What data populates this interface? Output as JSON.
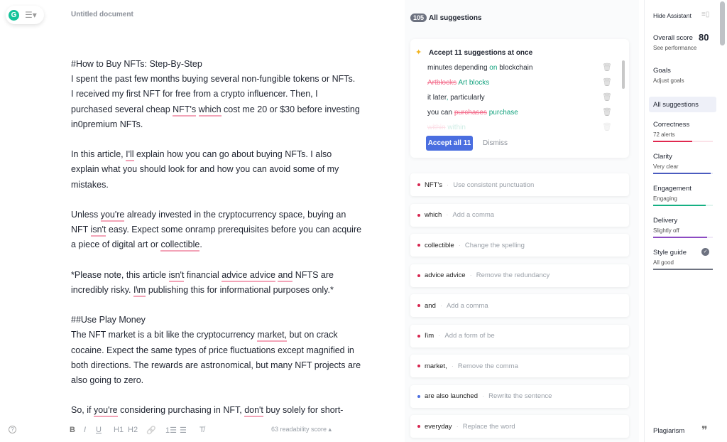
{
  "header": {
    "title": "Untitled document",
    "logo": "G"
  },
  "document": {
    "lines": [
      [
        {
          "t": "#How to Buy NFTs: Step-By-Step"
        }
      ],
      [
        {
          "t": "I spent the past few months buying several non-fungible tokens or NFTs."
        }
      ],
      [
        {
          "t": "I received my first NFT for free from a crypto influencer. Then, I"
        }
      ],
      [
        {
          "t": "purchased several cheap "
        },
        {
          "t": "NFT's",
          "u": true
        },
        {
          "t": " "
        },
        {
          "t": "which",
          "u": true
        },
        {
          "t": " cost me 20 or $30 before investing"
        }
      ],
      [
        {
          "t": "in0premium NFTs."
        }
      ],
      [],
      [
        {
          "t": "In this article, "
        },
        {
          "t": "I'll",
          "u": true
        },
        {
          "t": " explain how you can go about buying NFTs. I also"
        }
      ],
      [
        {
          "t": "explain what you should look for and how you can avoid some of my"
        }
      ],
      [
        {
          "t": "mistakes."
        }
      ],
      [],
      [
        {
          "t": "Unless "
        },
        {
          "t": "you're",
          "u": true
        },
        {
          "t": " already invested in the cryptocurrency space, buying an"
        }
      ],
      [
        {
          "t": "NFT "
        },
        {
          "t": "isn't",
          "u": true
        },
        {
          "t": " easy. Expect some onramp prerequisites before you can acquire"
        }
      ],
      [
        {
          "t": "a piece of digital art or "
        },
        {
          "t": "collectible",
          "u": true
        },
        {
          "t": "."
        }
      ],
      [],
      [
        {
          "t": "*Please note, this article "
        },
        {
          "t": "isn't",
          "u": true
        },
        {
          "t": " financial "
        },
        {
          "t": "advice advice",
          "u": true
        },
        {
          "t": " "
        },
        {
          "t": "and",
          "u": true
        },
        {
          "t": " NFTS are"
        }
      ],
      [
        {
          "t": "incredibly risky. "
        },
        {
          "t": "I\\m",
          "u": true
        },
        {
          "t": " publishing this for informational purposes only.*"
        }
      ],
      [],
      [
        {
          "t": "##Use Play Money"
        }
      ],
      [
        {
          "t": "The NFT market is a bit like the cryptocurrency "
        },
        {
          "t": "market,",
          "u": true
        },
        {
          "t": " but on crack"
        }
      ],
      [
        {
          "t": "cocaine. Expect the same types of price fluctuations except magnified in"
        }
      ],
      [
        {
          "t": "both directions. The rewards are astronomical, but many NFT projects are"
        }
      ],
      [
        {
          "t": "also going to zero."
        }
      ],
      [],
      [
        {
          "t": "So, if "
        },
        {
          "t": "you're",
          "u": true
        },
        {
          "t": " considering purchasing in NFT, "
        },
        {
          "t": "don't",
          "u": true
        },
        {
          "t": " buy solely for short-"
        }
      ]
    ]
  },
  "toolbar": {
    "help": "?",
    "bold": "B",
    "italic": "I",
    "underline": "U",
    "h1": "H1",
    "h2": "H2",
    "link": "🔗",
    "ordered": "1☰",
    "bullet": "☰",
    "clear": "T̸",
    "readability": "63 readability score ▴"
  },
  "suggestions": {
    "count": "105",
    "title": "All suggestions",
    "bulk": {
      "title": "Accept 11 suggestions at once",
      "items": [
        [
          {
            "t": "minutes depending "
          },
          {
            "t": "on",
            "k": "ins"
          },
          {
            "t": " blockchain"
          }
        ],
        [
          {
            "t": "Artblocks",
            "k": "del"
          },
          {
            "t": " "
          },
          {
            "t": "Art blocks",
            "k": "ins"
          }
        ],
        [
          {
            "t": "it later"
          },
          {
            "t": ",",
            "k": "ins"
          },
          {
            "t": " particularly"
          }
        ],
        [
          {
            "t": "you can "
          },
          {
            "t": "purchases",
            "k": "del"
          },
          {
            "t": " "
          },
          {
            "t": "purchase",
            "k": "ins"
          }
        ],
        [
          {
            "t": "within",
            "k": "del"
          },
          {
            "t": " within",
            "k": "ins"
          }
        ]
      ],
      "accept": "Accept all 11",
      "dismiss": "Dismiss"
    },
    "items": [
      {
        "word": "NFT's",
        "desc": "Use consistent punctuation",
        "color": "#d6244e"
      },
      {
        "word": "which",
        "desc": "Add a comma",
        "color": "#d6244e"
      },
      {
        "word": "collectible",
        "desc": "Change the spelling",
        "color": "#d6244e"
      },
      {
        "word": "advice advice",
        "desc": "Remove the redundancy",
        "color": "#d6244e"
      },
      {
        "word": "and",
        "desc": "Add a comma",
        "color": "#d6244e"
      },
      {
        "word": "I\\m",
        "desc": "Add a form of be",
        "color": "#d6244e"
      },
      {
        "word": "market,",
        "desc": "Remove the comma",
        "color": "#d6244e"
      },
      {
        "word": "are also launched",
        "desc": "Rewrite the sentence",
        "color": "#4a6ee0"
      },
      {
        "word": "everyday",
        "desc": "Replace the word",
        "color": "#d6244e"
      }
    ]
  },
  "sidebar": {
    "hide": "Hide Assistant",
    "overall_label": "Overall score",
    "overall_value": "80",
    "see_performance": "See performance",
    "goals": "Goals",
    "adjust_goals": "Adjust goals",
    "all_suggestions": "All suggestions",
    "categories": [
      {
        "name": "Correctness",
        "status": "72 alerts",
        "color": "#e0284f",
        "level": 0.65
      },
      {
        "name": "Clarity",
        "status": "Very clear",
        "color": "#4a5bbf",
        "level": 0.97
      },
      {
        "name": "Engagement",
        "status": "Engaging",
        "color": "#15b083",
        "level": 0.88
      },
      {
        "name": "Delivery",
        "status": "Slightly off",
        "color": "#8c4bc2",
        "level": 0.9
      },
      {
        "name": "Style guide",
        "status": "All good",
        "color": "#6d7280",
        "level": 1.0
      }
    ],
    "plagiarism": "Plagiarism"
  }
}
